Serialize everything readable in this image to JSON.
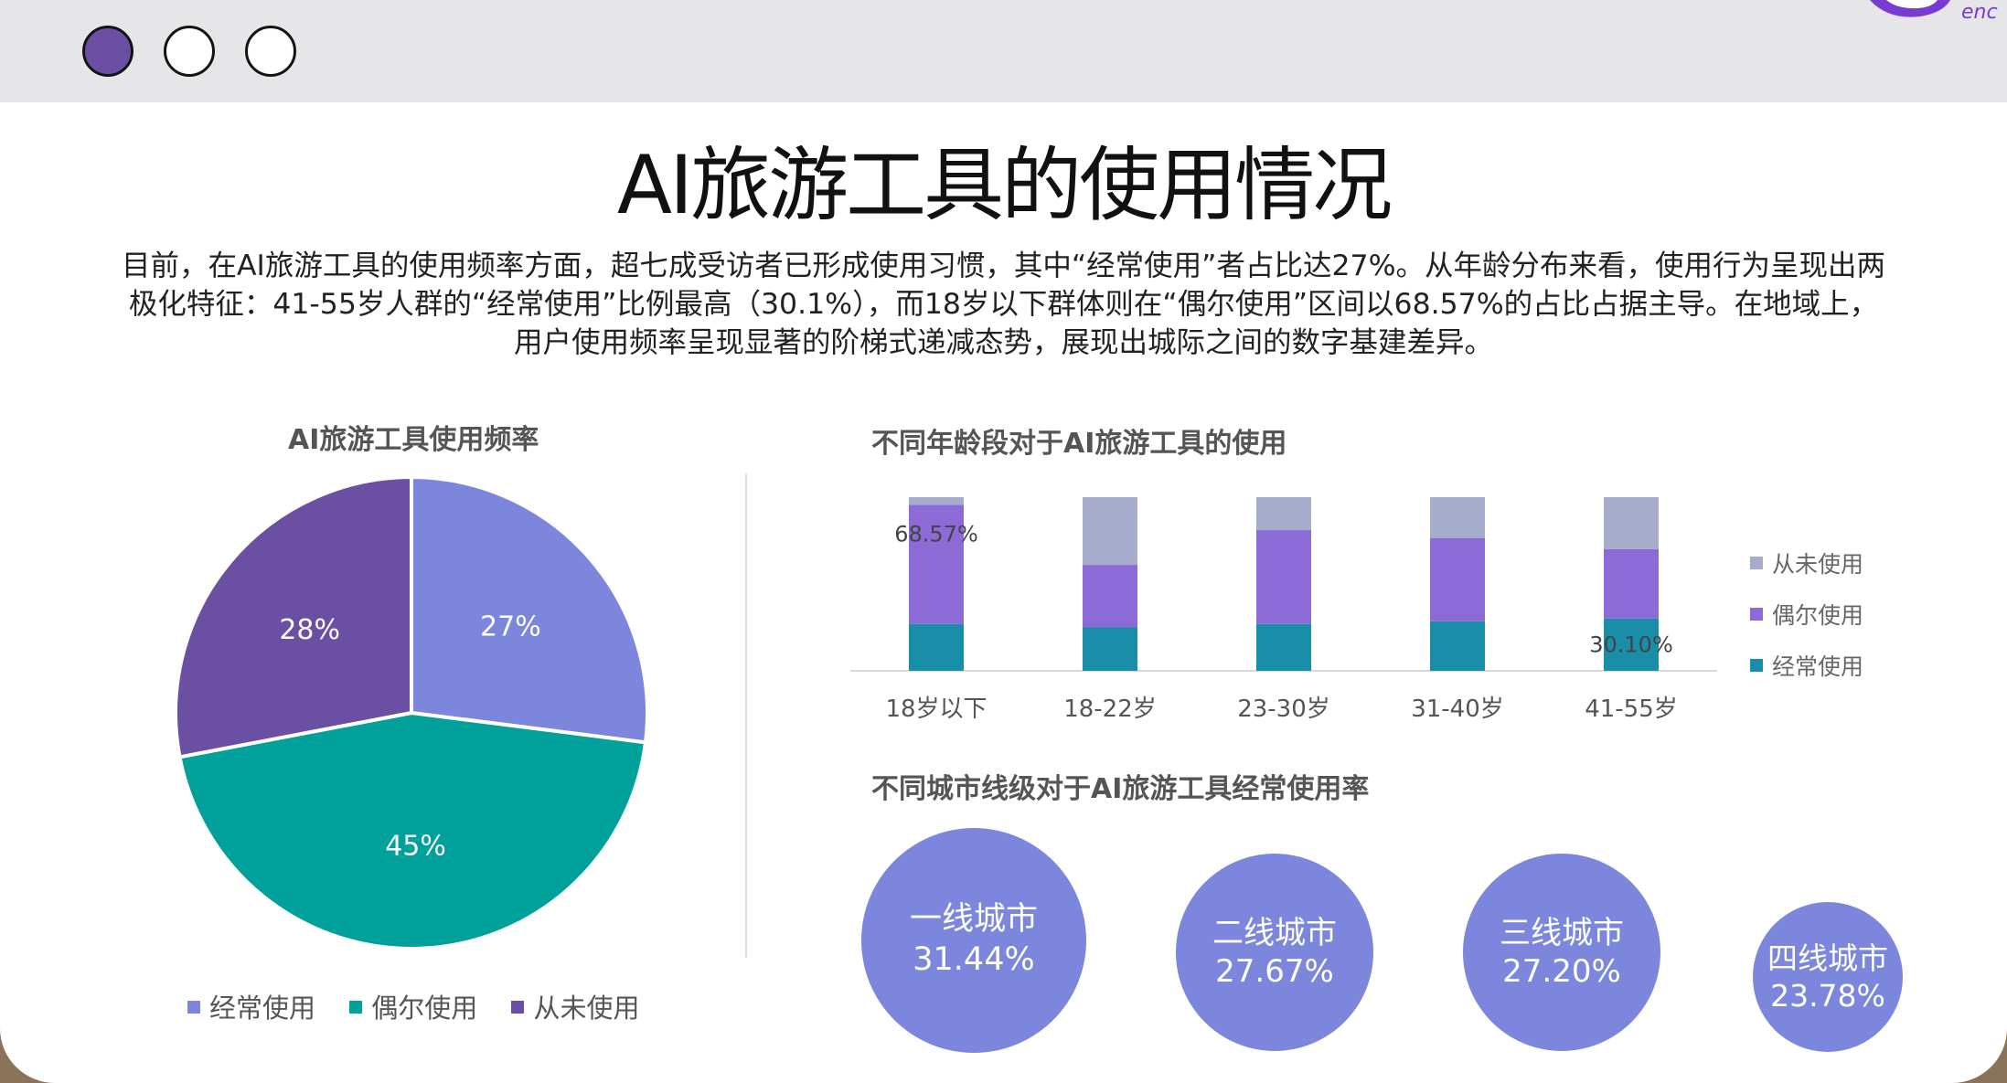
{
  "header": {
    "logo_text": "enc"
  },
  "title": "AI旅游工具的使用情况",
  "summary": "目前，在AI旅游工具的使用频率方面，超七成受访者已形成使用习惯，其中“经常使用”者占比达27%。从年龄分布来看，使用行为呈现出两极化特征：41-55岁人群的“经常使用”比例最高（30.1%），而18岁以下群体则在“偶尔使用”区间以68.57%的占比占据主导。在地域上，用户使用频率呈现显著的阶梯式递减态势，展现出城际之间的数字基建差异。",
  "colors": {
    "pie_often": "#7b86dc",
    "pie_sometimes": "#00a19a",
    "pie_never": "#6a4fa3",
    "bar_often": "#1a8ea8",
    "bar_sometimes": "#8c6bd6",
    "bar_never": "#a6adcc",
    "circle": "#7b86dc"
  },
  "chart_data": [
    {
      "type": "pie",
      "title": "AI旅游工具使用频率",
      "labels": [
        "经常使用",
        "偶尔使用",
        "从未使用"
      ],
      "values": [
        27,
        45,
        28
      ],
      "value_labels": [
        "27%",
        "45%",
        "28%"
      ],
      "legend_position": "bottom"
    },
    {
      "type": "bar",
      "stacked": true,
      "percent_stacked": true,
      "title": "不同年龄段对于AI旅游工具的使用",
      "categories": [
        "18岁以下",
        "18-22岁",
        "23-30岁",
        "31-40岁",
        "41-55岁"
      ],
      "series": [
        {
          "name": "经常使用",
          "values": [
            27.0,
            25.0,
            27.0,
            28.5,
            30.1
          ]
        },
        {
          "name": "偶尔使用",
          "values": [
            68.57,
            36.0,
            54.0,
            48.0,
            40.0
          ]
        },
        {
          "name": "从未使用",
          "values": [
            4.43,
            39.0,
            19.0,
            23.5,
            29.9
          ]
        }
      ],
      "annotations": [
        "68.57%",
        "30.10%"
      ],
      "legend_labels": [
        "从未使用",
        "偶尔使用",
        "经常使用"
      ],
      "legend_position": "right",
      "ylim": [
        0,
        100
      ],
      "grid": false
    },
    {
      "type": "bubble",
      "title": "不同城市线级对于AI旅游工具经常使用率",
      "categories": [
        "一线城市",
        "二线城市",
        "三线城市",
        "四线城市"
      ],
      "values": [
        31.44,
        27.67,
        27.2,
        23.78
      ],
      "value_labels": [
        "31.44%",
        "27.67%",
        "27.20%",
        "23.78%"
      ]
    }
  ]
}
